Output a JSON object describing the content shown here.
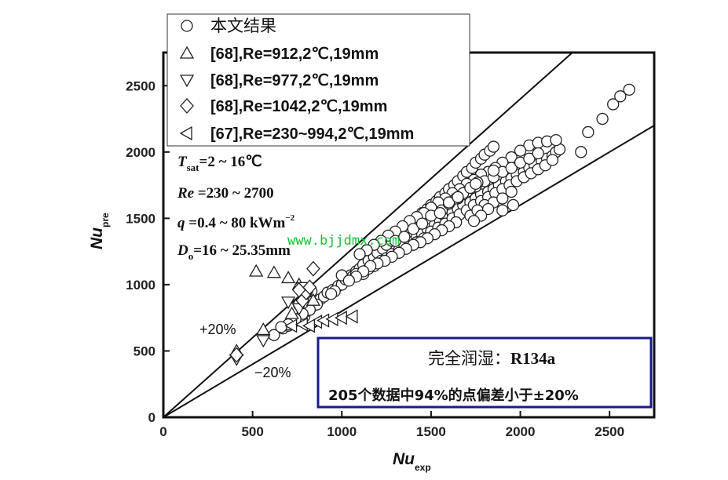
{
  "chart_data": {
    "type": "scatter",
    "title": "",
    "xlabel": "Nu",
    "xlabel_sub": "exp",
    "ylabel": "Nu",
    "ylabel_sub": "pre",
    "xlim": [
      0,
      2750
    ],
    "ylim": [
      0,
      2750
    ],
    "xticks": [
      0,
      500,
      1000,
      1500,
      2000,
      2500
    ],
    "yticks": [
      0,
      500,
      1000,
      1500,
      2000,
      2500
    ],
    "grid": false,
    "legend_position": "top-left",
    "reference_lines": [
      {
        "label": "+20%",
        "slope": 1.2
      },
      {
        "label": "−20%",
        "slope": 0.8
      }
    ],
    "conditions": [
      {
        "sym": "T",
        "sub": "sat",
        "rest": "=2 ~ 16℃"
      },
      {
        "sym": "Re",
        "rest": " =230 ~ 2700"
      },
      {
        "sym": "q",
        "rest": " =0.4 ~ 80 kWm",
        "sup": "−2"
      },
      {
        "sym": "D",
        "sub": "o",
        "rest": "=16 ~ 25.35mm"
      }
    ],
    "watermark": "www.bjjdmx.com",
    "info_box": {
      "title": "完全润湿：",
      "refrigerant": "R134a",
      "stat": "205个数据中94%的点偏差小于±20%"
    },
    "series": [
      {
        "name": "本文结果",
        "marker": "circle",
        "points": [
          [
            620,
            620
          ],
          [
            670,
            670
          ],
          [
            700,
            690
          ],
          [
            730,
            720
          ],
          [
            760,
            730
          ],
          [
            790,
            760
          ],
          [
            800,
            800
          ],
          [
            830,
            830
          ],
          [
            850,
            870
          ],
          [
            880,
            890
          ],
          [
            900,
            910
          ],
          [
            920,
            940
          ],
          [
            950,
            960
          ],
          [
            980,
            990
          ],
          [
            1000,
            1000
          ],
          [
            1020,
            1040
          ],
          [
            1050,
            1070
          ],
          [
            1080,
            1100
          ],
          [
            1100,
            1120
          ],
          [
            1120,
            1150
          ],
          [
            1150,
            1180
          ],
          [
            1180,
            1210
          ],
          [
            1200,
            1240
          ],
          [
            1230,
            1270
          ],
          [
            1250,
            1300
          ],
          [
            1280,
            1330
          ],
          [
            1300,
            1360
          ],
          [
            1330,
            1390
          ],
          [
            1350,
            1420
          ],
          [
            1380,
            1450
          ],
          [
            1400,
            1480
          ],
          [
            1430,
            1510
          ],
          [
            1450,
            1540
          ],
          [
            1480,
            1570
          ],
          [
            1500,
            1600
          ],
          [
            1530,
            1630
          ],
          [
            1550,
            1660
          ],
          [
            1580,
            1690
          ],
          [
            1600,
            1720
          ],
          [
            1630,
            1750
          ],
          [
            1650,
            1780
          ],
          [
            1680,
            1820
          ],
          [
            1700,
            1850
          ],
          [
            1730,
            1880
          ],
          [
            1750,
            1920
          ],
          [
            1780,
            1950
          ],
          [
            1800,
            1980
          ],
          [
            1830,
            2010
          ],
          [
            1850,
            2040
          ],
          [
            1000,
            1070
          ],
          [
            1060,
            1060
          ],
          [
            1080,
            1080
          ],
          [
            1120,
            1080
          ],
          [
            1150,
            1120
          ],
          [
            1180,
            1140
          ],
          [
            1220,
            1180
          ],
          [
            1250,
            1200
          ],
          [
            1280,
            1230
          ],
          [
            1320,
            1260
          ],
          [
            1350,
            1300
          ],
          [
            1380,
            1320
          ],
          [
            1420,
            1360
          ],
          [
            1450,
            1380
          ],
          [
            1480,
            1420
          ],
          [
            1520,
            1450
          ],
          [
            1550,
            1480
          ],
          [
            1580,
            1510
          ],
          [
            1620,
            1540
          ],
          [
            1650,
            1570
          ],
          [
            1680,
            1600
          ],
          [
            1720,
            1620
          ],
          [
            1750,
            1650
          ],
          [
            1780,
            1680
          ],
          [
            1820,
            1700
          ],
          [
            1850,
            1720
          ],
          [
            1880,
            1750
          ],
          [
            1920,
            1780
          ],
          [
            1950,
            1800
          ],
          [
            1980,
            1830
          ],
          [
            2020,
            1850
          ],
          [
            2050,
            1880
          ],
          [
            2080,
            1900
          ],
          [
            2120,
            1930
          ],
          [
            2150,
            1950
          ],
          [
            2180,
            1970
          ],
          [
            2200,
            2000
          ],
          [
            2220,
            2020
          ],
          [
            2050,
            2050
          ],
          [
            2100,
            2070
          ],
          [
            2150,
            2080
          ],
          [
            2200,
            2090
          ],
          [
            2000,
            2010
          ],
          [
            1950,
            1960
          ],
          [
            1900,
            1920
          ],
          [
            1860,
            1880
          ],
          [
            1820,
            1850
          ],
          [
            1780,
            1830
          ],
          [
            1740,
            1790
          ],
          [
            1700,
            1760
          ],
          [
            1660,
            1720
          ],
          [
            1620,
            1690
          ],
          [
            1580,
            1650
          ],
          [
            1540,
            1620
          ],
          [
            1500,
            1580
          ],
          [
            1460,
            1540
          ],
          [
            1420,
            1510
          ],
          [
            1380,
            1480
          ],
          [
            1340,
            1440
          ],
          [
            1300,
            1400
          ],
          [
            1260,
            1370
          ],
          [
            1220,
            1330
          ],
          [
            1180,
            1300
          ],
          [
            1140,
            1260
          ],
          [
            1100,
            1230
          ],
          [
            1420,
            1320
          ],
          [
            1460,
            1350
          ],
          [
            1500,
            1400
          ],
          [
            1540,
            1430
          ],
          [
            1580,
            1460
          ],
          [
            1620,
            1500
          ],
          [
            1660,
            1530
          ],
          [
            1700,
            1560
          ],
          [
            1740,
            1600
          ],
          [
            1780,
            1630
          ],
          [
            1820,
            1660
          ],
          [
            1860,
            1690
          ],
          [
            1900,
            1720
          ],
          [
            1940,
            1750
          ],
          [
            1980,
            1780
          ],
          [
            2020,
            1810
          ],
          [
            2060,
            1840
          ],
          [
            2100,
            1870
          ],
          [
            2140,
            1900
          ],
          [
            2180,
            1940
          ],
          [
            1650,
            1650
          ],
          [
            1700,
            1700
          ],
          [
            1750,
            1740
          ],
          [
            1800,
            1780
          ],
          [
            1850,
            1810
          ],
          [
            1900,
            1850
          ],
          [
            1950,
            1880
          ],
          [
            2000,
            1920
          ],
          [
            2050,
            1950
          ],
          [
            2100,
            1990
          ],
          [
            1560,
            1560
          ],
          [
            1600,
            1610
          ],
          [
            1640,
            1650
          ],
          [
            1680,
            1690
          ],
          [
            1720,
            1730
          ],
          [
            1760,
            1770
          ],
          [
            1800,
            1600
          ],
          [
            1850,
            1620
          ],
          [
            1900,
            1650
          ],
          [
            1950,
            1700
          ],
          [
            1720,
            1520
          ],
          [
            1760,
            1560
          ],
          [
            1640,
            1470
          ],
          [
            1600,
            1440
          ],
          [
            1560,
            1410
          ],
          [
            1520,
            1380
          ],
          [
            1480,
            1350
          ],
          [
            1440,
            1320
          ],
          [
            1400,
            1300
          ],
          [
            1360,
            1270
          ],
          [
            1320,
            1240
          ],
          [
            1280,
            1210
          ],
          [
            1240,
            1180
          ],
          [
            1200,
            1160
          ],
          [
            1160,
            1140
          ],
          [
            1120,
            1100
          ],
          [
            1080,
            1060
          ],
          [
            1040,
            1030
          ],
          [
            960,
            950
          ],
          [
            940,
            930
          ],
          [
            860,
            850
          ],
          [
            820,
            810
          ],
          [
            780,
            780
          ],
          [
            740,
            740
          ],
          [
            700,
            700
          ],
          [
            660,
            680
          ],
          [
            1900,
            1560
          ],
          [
            1960,
            1600
          ],
          [
            1820,
            1570
          ],
          [
            1780,
            1520
          ],
          [
            1740,
            1480
          ],
          [
            1300,
            1330
          ],
          [
            1400,
            1420
          ],
          [
            1500,
            1520
          ],
          [
            1600,
            1620
          ],
          [
            1450,
            1460
          ],
          [
            1350,
            1360
          ],
          [
            1550,
            1540
          ],
          [
            1650,
            1660
          ],
          [
            1750,
            1760
          ],
          [
            1850,
            1860
          ],
          [
            2340,
            2000
          ],
          [
            2380,
            2150
          ],
          [
            2460,
            2250
          ],
          [
            2520,
            2360
          ],
          [
            2560,
            2420
          ],
          [
            2610,
            2470
          ],
          [
            800,
            910
          ],
          [
            830,
            950
          ],
          [
            780,
            860
          ],
          [
            760,
            850
          ]
        ]
      },
      {
        "name": "[68],Re=912,2℃,19mm",
        "marker": "triangle-up",
        "points": [
          [
            410,
            500
          ],
          [
            520,
            1100
          ],
          [
            560,
            660
          ],
          [
            620,
            1090
          ],
          [
            700,
            1050
          ],
          [
            760,
            1000
          ],
          [
            800,
            950
          ],
          [
            840,
            880
          ],
          [
            720,
            780
          ]
        ]
      },
      {
        "name": "[68],Re=977,2℃,19mm",
        "marker": "triangle-down",
        "points": [
          [
            410,
            440
          ],
          [
            560,
            580
          ],
          [
            700,
            870
          ],
          [
            760,
            820
          ],
          [
            800,
            910
          ],
          [
            780,
            980
          ]
        ]
      },
      {
        "name": "[68],Re=1042,2℃,19mm",
        "marker": "diamond",
        "points": [
          [
            410,
            470
          ],
          [
            780,
            880
          ],
          [
            800,
            940
          ],
          [
            820,
            980
          ],
          [
            840,
            1120
          ],
          [
            760,
            960
          ]
        ]
      },
      {
        "name": "[67],Re=230~994,2℃,19mm",
        "marker": "triangle-left",
        "points": [
          [
            720,
            690
          ],
          [
            780,
            700
          ],
          [
            860,
            720
          ],
          [
            900,
            730
          ],
          [
            950,
            740
          ],
          [
            1000,
            750
          ],
          [
            1060,
            760
          ],
          [
            820,
            690
          ]
        ]
      }
    ]
  }
}
